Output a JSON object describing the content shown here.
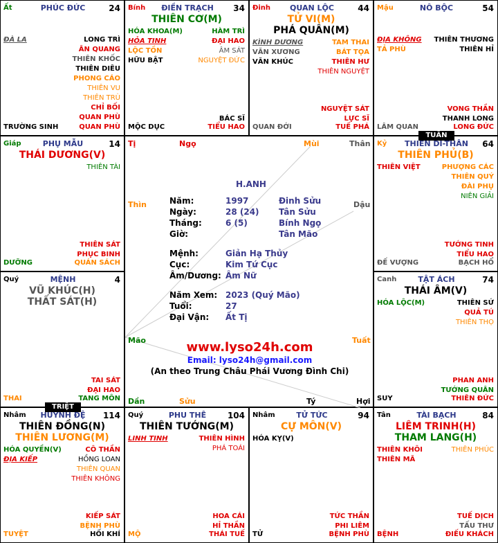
{
  "cells": [
    {
      "id": "ty",
      "can": "Ất",
      "can_color": "#007a00",
      "palace": "PHÚC ĐỨC",
      "num": "24",
      "left": [
        {
          "t": "ĐÀ LA",
          "c": "#555",
          "it": true
        }
      ],
      "right": [
        {
          "t": "LONG TRÌ",
          "c": "#000"
        },
        {
          "t": "ÂN QUANG",
          "c": "#e00000"
        },
        {
          "t": "THIÊN KHỐC",
          "c": "#555"
        },
        {
          "t": "THIÊN DIÊU",
          "c": "#000"
        },
        {
          "t": "PHONG CÁO",
          "c": "#ff8800"
        },
        {
          "t": "THIÊN VU",
          "c": "#ff8800",
          "n": true
        },
        {
          "t": "THIÊN TRÙ",
          "c": "#ff8800",
          "n": true
        },
        {
          "t": "CHỈ BỐI",
          "c": "#e00000"
        },
        {
          "t": "QUAN PHÙ",
          "c": "#e00000"
        }
      ],
      "bottom_left": {
        "t": "TRƯỜNG SINH",
        "c": "#000"
      },
      "bottom_right": {
        "t": "QUAN PHÙ",
        "c": "#e00000"
      }
    },
    {
      "id": "ngo",
      "can": "Bính",
      "can_color": "#e00000",
      "palace": "ĐIỀN TRẠCH",
      "num": "34",
      "major": [
        {
          "t": "THIÊN CƠ(M)",
          "c": "#007a00"
        }
      ],
      "left": [
        {
          "t": "HÓA KHOA(M)",
          "c": "#007a00"
        },
        {
          "t": "HỎA TINH",
          "c": "#e00000",
          "it": true
        },
        {
          "t": "LỘC TỒN",
          "c": "#ff8800"
        },
        {
          "t": "HỮU BẬT",
          "c": "#000"
        }
      ],
      "right": [
        {
          "t": "HÀM TRÌ",
          "c": "#007a00"
        },
        {
          "t": "ĐẠI HAO",
          "c": "#e00000"
        },
        {
          "t": "ÂM SÁT",
          "c": "#555",
          "n": true
        },
        {
          "t": "NGUYỆT ĐỨC",
          "c": "#ff8800",
          "n": true
        }
      ],
      "extra_right": [
        {
          "t": "BÁC SĨ",
          "c": "#000"
        }
      ],
      "bottom_left": {
        "t": "MỘC DỤC",
        "c": "#000"
      },
      "bottom_right": {
        "t": "TIỂU HAO",
        "c": "#e00000"
      }
    },
    {
      "id": "mui",
      "can": "Đinh",
      "can_color": "#e00000",
      "palace": "QUAN LỘC",
      "num": "44",
      "major": [
        {
          "t": "TỬ VI(M)",
          "c": "#ff8800"
        },
        {
          "t": "PHÁ QUÂN(M)",
          "c": "#000"
        }
      ],
      "left": [
        {
          "t": "KÌNH DƯƠNG",
          "c": "#555",
          "it": true
        },
        {
          "t": "VĂN XƯƠNG",
          "c": "#555"
        },
        {
          "t": "VĂN KHÚC",
          "c": "#000"
        }
      ],
      "right": [
        {
          "t": "TAM THAI",
          "c": "#ff8800"
        },
        {
          "t": "BÁT TỌA",
          "c": "#ff8800"
        },
        {
          "t": "THIÊN HƯ",
          "c": "#e00000"
        },
        {
          "t": "THIÊN NGUYỆT",
          "c": "#e00000",
          "n": true
        }
      ],
      "extra_right": [
        {
          "t": "NGUYỆT SÁT",
          "c": "#e00000"
        },
        {
          "t": "LỰC SĨ",
          "c": "#e00000"
        }
      ],
      "bottom_left": {
        "t": "QUAN ĐỚI",
        "c": "#555"
      },
      "bottom_right": {
        "t": "TUẾ PHÁ",
        "c": "#e00000"
      }
    },
    {
      "id": "than",
      "can": "Mậu",
      "can_color": "#ff8800",
      "palace": "NÔ BỘC",
      "num": "54",
      "left": [
        {
          "t": "ĐỊA KHÔNG",
          "c": "#e00000",
          "it": true
        },
        {
          "t": "TẢ PHÙ",
          "c": "#ff8800"
        }
      ],
      "right": [
        {
          "t": "THIÊN THƯƠNG",
          "c": "#000"
        },
        {
          "t": "THIÊN HỈ",
          "c": "#000"
        }
      ],
      "extra_right": [
        {
          "t": "VONG THẦN",
          "c": "#e00000"
        },
        {
          "t": "THANH LONG",
          "c": "#000"
        }
      ],
      "bottom_left": {
        "t": "LÂM QUAN",
        "c": "#555"
      },
      "bottom_right": {
        "t": "LONG ĐỨC",
        "c": "#e00000"
      }
    },
    {
      "id": "thin",
      "can": "Giáp",
      "can_color": "#007a00",
      "palace": "PHỤ MẪU",
      "num": "14",
      "major": [
        {
          "t": "THÁI DƯƠNG(V)",
          "c": "#e00000"
        }
      ],
      "left": [],
      "right": [
        {
          "t": "THIÊN TÀI",
          "c": "#007a00",
          "n": true
        }
      ],
      "extra_right": [
        {
          "t": "THIÊN SÁT",
          "c": "#e00000"
        },
        {
          "t": "PHỤC BINH",
          "c": "#e00000"
        }
      ],
      "bottom_left": {
        "t": "DƯỠNG",
        "c": "#007a00"
      },
      "bottom_right": {
        "t": "QUÁN SÁCH",
        "c": "#ff8800"
      }
    },
    {
      "id": "dau",
      "can": "Kỷ",
      "can_color": "#ff8800",
      "palace": "THIÊN DI-THÂN",
      "num": "64",
      "major": [
        {
          "t": "THIÊN PHỦ(B)",
          "c": "#ff8800"
        }
      ],
      "left": [
        {
          "t": "THIÊN VIỆT",
          "c": "#e00000"
        }
      ],
      "right": [
        {
          "t": "PHƯỢNG CÁC",
          "c": "#ff8800"
        },
        {
          "t": "THIÊN QUÝ",
          "c": "#ff8800"
        },
        {
          "t": "ĐÀI PHỤ",
          "c": "#ff8800"
        },
        {
          "t": "NIÊN GIẢI",
          "c": "#007a00",
          "n": true
        }
      ],
      "extra_right": [
        {
          "t": "TƯỚNG TINH",
          "c": "#e00000"
        },
        {
          "t": "TIỂU HAO",
          "c": "#e00000"
        }
      ],
      "bottom_left": {
        "t": "ĐẾ VƯỢNG",
        "c": "#555"
      },
      "bottom_right": {
        "t": "BẠCH HỔ",
        "c": "#555"
      }
    },
    {
      "id": "mao",
      "can": "Quý",
      "can_color": "#000",
      "palace": "MỆNH",
      "num": "4",
      "major": [
        {
          "t": "VŨ KHÚC(H)",
          "c": "#555"
        },
        {
          "t": "THẤT SÁT(H)",
          "c": "#555"
        }
      ],
      "left": [],
      "right": [],
      "extra_right": [
        {
          "t": "TAI SÁT",
          "c": "#e00000"
        },
        {
          "t": "ĐẠI HAO",
          "c": "#e00000"
        }
      ],
      "bottom_left": {
        "t": "THAI",
        "c": "#ff8800"
      },
      "bottom_right": {
        "t": "TANG MÔN",
        "c": "#007a00"
      }
    },
    {
      "id": "tuat",
      "can": "Canh",
      "can_color": "#555",
      "palace": "TẬT ÁCH",
      "num": "74",
      "major": [
        {
          "t": "THÁI ÂM(V)",
          "c": "#000"
        }
      ],
      "left": [
        {
          "t": "HÓA LỘC(M)",
          "c": "#007a00"
        }
      ],
      "right": [
        {
          "t": "THIÊN SỨ",
          "c": "#000"
        },
        {
          "t": "QUẢ TÚ",
          "c": "#e00000"
        },
        {
          "t": "THIÊN THỌ",
          "c": "#ff8800",
          "n": true
        }
      ],
      "extra_right": [
        {
          "t": "PHAN ANH",
          "c": "#e00000"
        },
        {
          "t": "TƯỚNG QUÂN",
          "c": "#007a00"
        }
      ],
      "bottom_left": {
        "t": "SUY",
        "c": "#000"
      },
      "bottom_right": {
        "t": "THIÊN ĐỨC",
        "c": "#e00000"
      }
    },
    {
      "id": "dan",
      "can": "Nhâm",
      "can_color": "#000",
      "palace": "HUYNH ĐỆ",
      "num": "114",
      "major": [
        {
          "t": "THIÊN ĐỒNG(N)",
          "c": "#000"
        },
        {
          "t": "THIÊN LƯƠNG(M)",
          "c": "#ff8800"
        }
      ],
      "left": [
        {
          "t": "HÓA QUYỀN(V)",
          "c": "#007a00"
        },
        {
          "t": "ĐỊA KIẾP",
          "c": "#e00000",
          "it": true
        }
      ],
      "right": [
        {
          "t": "CÔ THẦN",
          "c": "#e00000"
        },
        {
          "t": "HỒNG LOAN",
          "c": "#000",
          "n": true
        },
        {
          "t": "THIÊN QUAN",
          "c": "#ff8800",
          "n": true
        },
        {
          "t": "THIÊN KHÔNG",
          "c": "#e00000",
          "n": true
        }
      ],
      "extra_right": [
        {
          "t": "KIẾP SÁT",
          "c": "#e00000"
        },
        {
          "t": "BỆNH PHÙ",
          "c": "#ff8800"
        }
      ],
      "bottom_left": {
        "t": "TUYỆT",
        "c": "#ff8800"
      },
      "bottom_right": {
        "t": "HỐI KHÍ",
        "c": "#000"
      }
    },
    {
      "id": "suu",
      "can": "Quý",
      "can_color": "#000",
      "palace": "PHU THÊ",
      "num": "104",
      "major": [
        {
          "t": "THIÊN TƯỚNG(M)",
          "c": "#000"
        }
      ],
      "left": [
        {
          "t": "LINH TINH",
          "c": "#e00000",
          "it": true
        }
      ],
      "right": [
        {
          "t": "THIÊN HÌNH",
          "c": "#e00000"
        },
        {
          "t": "PHÁ TOÁI",
          "c": "#e00000",
          "n": true
        }
      ],
      "extra_right": [
        {
          "t": "HOA CÁI",
          "c": "#e00000"
        },
        {
          "t": "HỈ THẦN",
          "c": "#e00000"
        }
      ],
      "bottom_left": {
        "t": "MỘ",
        "c": "#ff8800"
      },
      "bottom_right": {
        "t": "THÁI TUẾ",
        "c": "#e00000"
      }
    },
    {
      "id": "ty2",
      "can": "Nhâm",
      "can_color": "#000",
      "palace": "TỬ TỨC",
      "num": "94",
      "major": [
        {
          "t": "CỰ MÔN(V)",
          "c": "#ff8800"
        }
      ],
      "left": [
        {
          "t": "HÓA KỴ(V)",
          "c": "#000"
        }
      ],
      "right": [],
      "extra_right": [
        {
          "t": "TỨC THẦN",
          "c": "#e00000"
        },
        {
          "t": "PHI LIÊM",
          "c": "#e00000"
        }
      ],
      "bottom_left": {
        "t": "TỬ",
        "c": "#000"
      },
      "bottom_right": {
        "t": "BỆNH PHÙ",
        "c": "#e00000"
      }
    },
    {
      "id": "hoi",
      "can": "Tân",
      "can_color": "#000",
      "palace": "TÀI BẠCH",
      "num": "84",
      "major": [
        {
          "t": "LIÊM TRINH(H)",
          "c": "#e00000"
        },
        {
          "t": "THAM LANG(H)",
          "c": "#007a00"
        }
      ],
      "left": [
        {
          "t": "THIÊN KHÔI",
          "c": "#e00000"
        },
        {
          "t": "THIÊN MÃ",
          "c": "#e00000"
        }
      ],
      "right": [
        {
          "t": "THIÊN PHÚC",
          "c": "#ff8800",
          "n": true
        }
      ],
      "extra_right": [
        {
          "t": "TUẾ DỊCH",
          "c": "#e00000"
        },
        {
          "t": "TẤU THƯ",
          "c": "#555"
        }
      ],
      "bottom_left": {
        "t": "BỆNH",
        "c": "#e00000"
      },
      "bottom_right": {
        "t": "ĐIẾU KHÁCH",
        "c": "#e00000"
      }
    }
  ],
  "badges": {
    "tuan": "TUẦN",
    "triet": "TRIỆT"
  },
  "branches": {
    "ti": "Tị",
    "ngo": "Ngọ",
    "mui": "Mùi",
    "than": "Thân",
    "thin": "Thìn",
    "dau": "Dậu",
    "mao": "Mão",
    "tuat": "Tuất",
    "dan": "Dần",
    "suu": "Sửu",
    "ty": "Tý",
    "hoi": "Hợi"
  },
  "info": {
    "name": "H.ANH",
    "rows": [
      {
        "label": "Năm:",
        "v1": "1997",
        "v2": "Đinh Sửu"
      },
      {
        "label": "Ngày:",
        "v1": "28 (24)",
        "v2": "Tân Sửu"
      },
      {
        "label": "Tháng:",
        "v1": "6 (5)",
        "v2": "Bính Ngọ"
      },
      {
        "label": "Giờ:",
        "v1": "",
        "v2": "Tân Mão"
      },
      {
        "label": "Mệnh:",
        "v1": "Giản Hạ Thủy",
        "v2": ""
      },
      {
        "label": "Cục:",
        "v1": "Kim Tứ Cục",
        "v2": ""
      },
      {
        "label": "Âm/Dương:",
        "v1": "Âm Nữ",
        "v2": ""
      },
      {
        "label": "Năm Xem:",
        "v1": "2023 (Quý Mão)",
        "v2": ""
      },
      {
        "label": "Tuổi:",
        "v1": "27",
        "v2": ""
      },
      {
        "label": "Đại Vận:",
        "v1": "Ất Tị",
        "v2": ""
      }
    ],
    "website": "www.lyso24h.com",
    "email": "Email: lyso24h@gmail.com",
    "note": "(An theo Trung Châu Phái Vương Đình Chi)"
  }
}
